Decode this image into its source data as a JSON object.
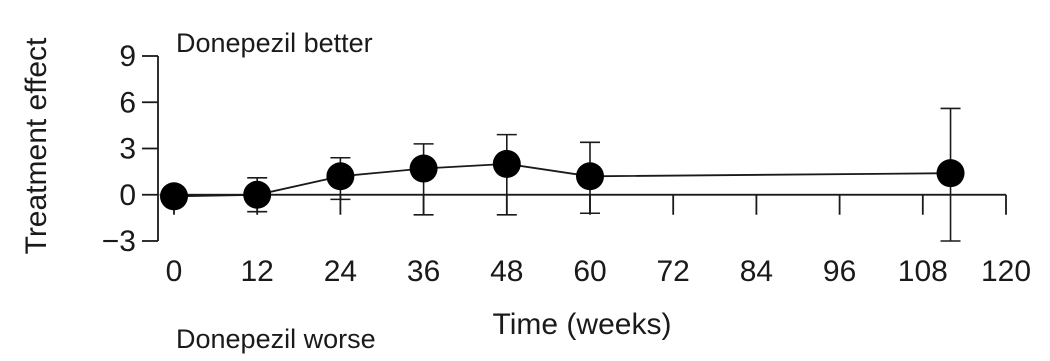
{
  "chart_data": {
    "type": "line",
    "title": "",
    "xlabel": "Time (weeks)",
    "ylabel": "Treatment effect",
    "xlim": [
      0,
      120
    ],
    "ylim": [
      -3,
      9
    ],
    "x_ticks": [
      0,
      12,
      24,
      36,
      48,
      60,
      72,
      84,
      96,
      108,
      120
    ],
    "y_ticks": [
      -3,
      0,
      3,
      6,
      9
    ],
    "annotations": {
      "top": "Donepezil better",
      "bottom": "Donepezil worse"
    },
    "grid": false,
    "reference_line_y": 0,
    "series": [
      {
        "points": [
          {
            "x": 0,
            "y": -0.1,
            "lower": -0.3,
            "upper": 0.1
          },
          {
            "x": 12,
            "y": 0.0,
            "lower": -1.1,
            "upper": 1.1
          },
          {
            "x": 24,
            "y": 1.2,
            "lower": -0.3,
            "upper": 2.4
          },
          {
            "x": 36,
            "y": 1.7,
            "lower": -1.3,
            "upper": 3.3
          },
          {
            "x": 48,
            "y": 2.0,
            "lower": -1.3,
            "upper": 3.9
          },
          {
            "x": 60,
            "y": 1.2,
            "lower": -1.2,
            "upper": 3.4
          },
          {
            "x": 112,
            "y": 1.4,
            "lower": -3.0,
            "upper": 5.6
          }
        ]
      }
    ]
  }
}
